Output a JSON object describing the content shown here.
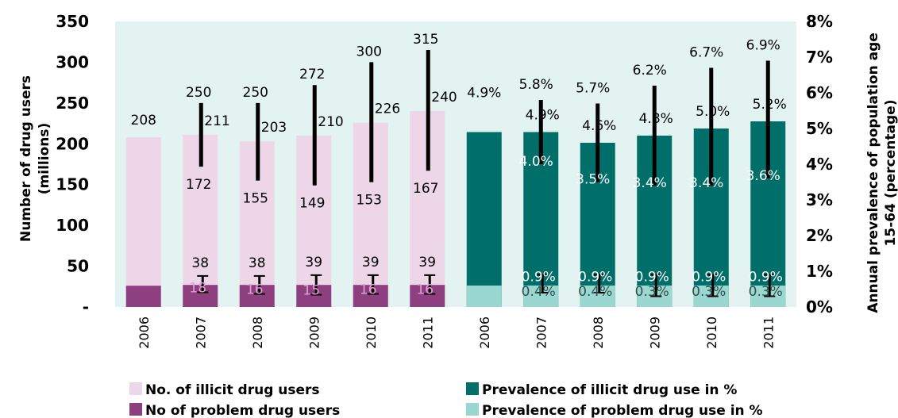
{
  "chart_data": {
    "type": "bar",
    "left_axis": {
      "title_line1": "Number of drug users",
      "title_line2": "(millions)",
      "ticks": [
        "-",
        "50",
        "100",
        "150",
        "200",
        "250",
        "300",
        "350"
      ],
      "ylim": [
        0,
        350
      ]
    },
    "right_axis": {
      "title_line1": "Annual prevalence  of population age",
      "title_line2": "15-64 (percentage)",
      "ticks": [
        "0%",
        "1%",
        "2%",
        "3%",
        "4%",
        "5%",
        "6%",
        "7%",
        "8%"
      ],
      "ylim": [
        0,
        8
      ]
    },
    "users_group": {
      "categories": [
        "2006",
        "2007",
        "2008",
        "2009",
        "2010",
        "2011"
      ],
      "illicit_users": [
        208,
        211,
        203,
        210,
        226,
        240
      ],
      "illicit_labels": [
        "208",
        "211",
        "203",
        "210",
        "226",
        "240"
      ],
      "illicit_high": [
        null,
        250,
        250,
        272,
        300,
        315
      ],
      "illicit_high_labels": [
        "",
        "250",
        "250",
        "272",
        "300",
        "315"
      ],
      "illicit_low": [
        null,
        172,
        155,
        149,
        153,
        167
      ],
      "illicit_low_labels": [
        "",
        "172",
        "155",
        "149",
        "153",
        "167"
      ],
      "problem_users": [
        26,
        27,
        27,
        27,
        27,
        27
      ],
      "problem_high": [
        null,
        38,
        38,
        39,
        39,
        39
      ],
      "problem_high_labels": [
        "",
        "38",
        "38",
        "39",
        "39",
        "39"
      ],
      "problem_low": [
        null,
        18,
        16,
        15,
        16,
        16
      ],
      "problem_low_labels": [
        "",
        "18",
        "16",
        "15",
        "16",
        "16"
      ]
    },
    "prevalence_group": {
      "categories": [
        "2006",
        "2007",
        "2008",
        "2009",
        "2010",
        "2011"
      ],
      "illicit_pct": [
        4.9,
        4.9,
        4.6,
        4.8,
        5.0,
        5.2
      ],
      "illicit_labels": [
        "4.9%",
        "4.9%",
        "4.6%",
        "4.8%",
        "5.0%",
        "5.2%"
      ],
      "illicit_high": [
        null,
        5.8,
        5.7,
        6.2,
        6.7,
        6.9
      ],
      "illicit_high_labels": [
        "",
        "5.8%",
        "5.7%",
        "6.2%",
        "6.7%",
        "6.9%"
      ],
      "illicit_low": [
        null,
        4.0,
        3.5,
        3.4,
        3.4,
        3.6
      ],
      "illicit_low_labels": [
        "",
        "4.0%",
        "3.5%",
        "3.4%",
        "3.4%",
        "3.6%"
      ],
      "problem_pct": [
        0.6,
        0.6,
        0.6,
        0.6,
        0.6,
        0.6
      ],
      "problem_high": [
        null,
        0.9,
        0.9,
        0.9,
        0.9,
        0.9
      ],
      "problem_high_labels": [
        "",
        "0.9%",
        "0.9%",
        "0.9%",
        "0.9%",
        "0.9%"
      ],
      "problem_low": [
        null,
        0.4,
        0.4,
        0.3,
        0.3,
        0.3
      ],
      "problem_low_labels": [
        "",
        "0.4%",
        "0.4%",
        "0.3%",
        "0.3%",
        "0.3%"
      ]
    },
    "legend": [
      {
        "name": "No. of illicit drug users",
        "color": "#ecd6e8"
      },
      {
        "name": "Prevalence of illicit drug use in %",
        "color": "#006f6a"
      },
      {
        "name": "No of problem drug users",
        "color": "#8e3f80"
      },
      {
        "name": "Prevalence of problem drug use in %",
        "color": "#9bd7d1"
      }
    ],
    "colors": {
      "plot_bg": "#e3f3f1",
      "illicit_users": "#ecd6e8",
      "problem_users": "#8e3f80",
      "illicit_pct": "#006f6a",
      "problem_pct": "#9bd7d1",
      "error_bar": "#000000",
      "label_dark": "#000000",
      "label_light": "#ffffff"
    }
  }
}
